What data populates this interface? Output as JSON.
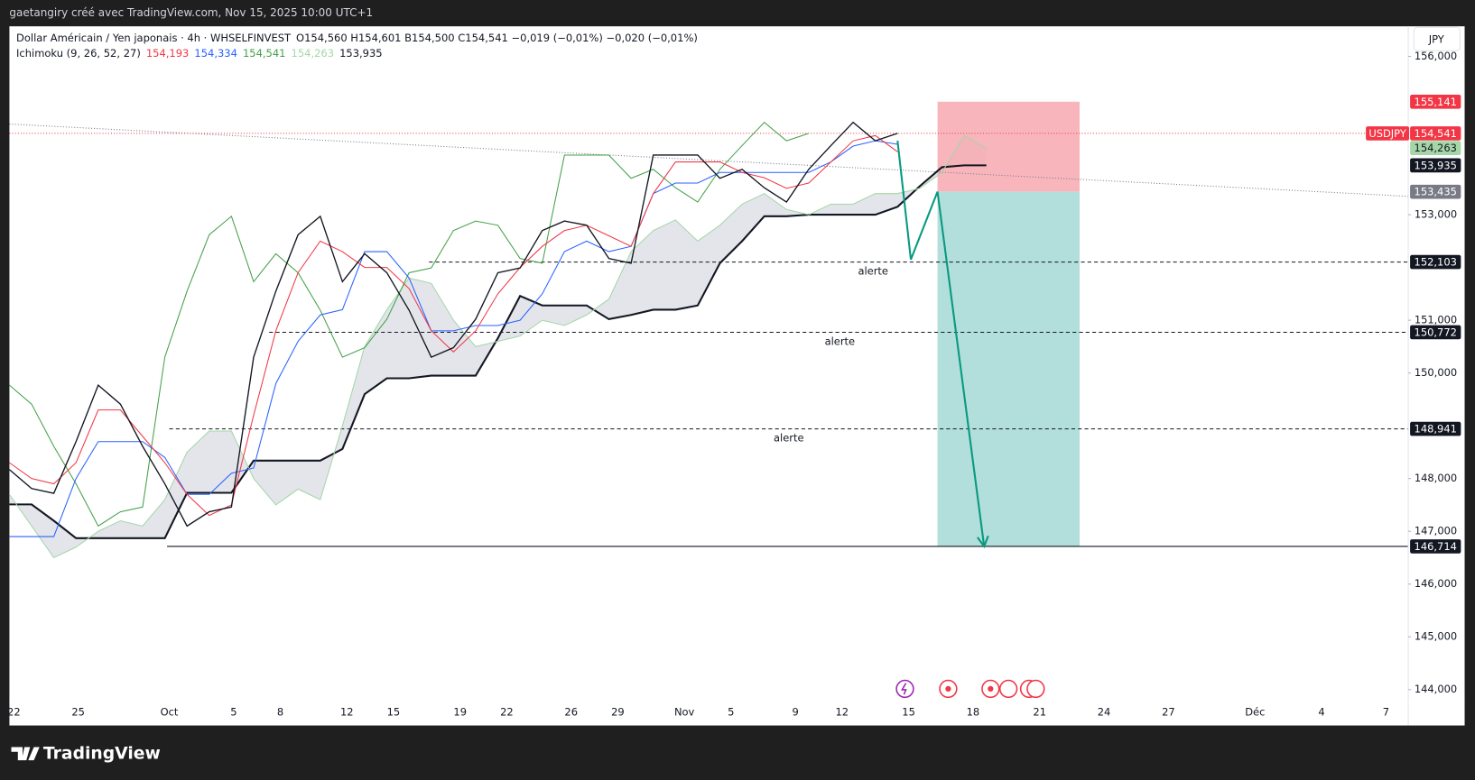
{
  "header": "gaetangiry créé avec TradingView.com, Nov 15, 2025 10:00 UTC+1",
  "brand": "TradingView",
  "chart_data": {
    "type": "line",
    "title": "Dollar Américain / Yen japonais · 4h · WHSELFINVEST",
    "ohlc": "O154,560 H154,601 B154,500 C154,541 −0,019 (−0,01%) −0,020 (−0,01%)",
    "currency": "JPY",
    "indicator": {
      "label": "Ichimoku (9, 26, 52, 27)",
      "values": [
        154193,
        154334,
        154541,
        154263,
        153935
      ],
      "value_labels": [
        "154,193",
        "154,334",
        "154,541",
        "154,263",
        "153,935"
      ]
    },
    "grid": false,
    "xlim": [
      0,
      63
    ],
    "xticks": [
      {
        "value": 0.2,
        "label": "22"
      },
      {
        "value": 3.1,
        "label": "25"
      },
      {
        "value": 7.2,
        "label": "Oct"
      },
      {
        "value": 10.1,
        "label": "5"
      },
      {
        "value": 12.2,
        "label": "8"
      },
      {
        "value": 15.2,
        "label": "12"
      },
      {
        "value": 17.3,
        "label": "15"
      },
      {
        "value": 20.3,
        "label": "19"
      },
      {
        "value": 22.4,
        "label": "22"
      },
      {
        "value": 25.3,
        "label": "26"
      },
      {
        "value": 27.4,
        "label": "29"
      },
      {
        "value": 30.4,
        "label": "Nov"
      },
      {
        "value": 32.5,
        "label": "5"
      },
      {
        "value": 35.4,
        "label": "9"
      },
      {
        "value": 37.5,
        "label": "12"
      },
      {
        "value": 40.5,
        "label": "15"
      },
      {
        "value": 43.4,
        "label": "18"
      },
      {
        "value": 46.4,
        "label": "21"
      },
      {
        "value": 49.3,
        "label": "24"
      },
      {
        "value": 52.2,
        "label": "27"
      },
      {
        "value": 56.1,
        "label": "Déc"
      },
      {
        "value": 59.1,
        "label": "4"
      },
      {
        "value": 62.0,
        "label": "7"
      }
    ],
    "ylim": [
      143320,
      156570
    ],
    "yticks": [
      {
        "value": 156000,
        "label": "156,000"
      },
      {
        "value": 153000,
        "label": "153,000"
      },
      {
        "value": 151000,
        "label": "151,000"
      },
      {
        "value": 150000,
        "label": "150,000"
      },
      {
        "value": 148000,
        "label": "148,000"
      },
      {
        "value": 147000,
        "label": "147,000"
      },
      {
        "value": 146000,
        "label": "146,000"
      },
      {
        "value": 145000,
        "label": "145,000"
      },
      {
        "value": 144000,
        "label": "144,000"
      }
    ],
    "x": [
      0,
      1,
      2,
      3,
      4,
      5,
      6,
      7,
      8,
      9,
      10,
      11,
      12,
      13,
      14,
      15,
      16,
      17,
      18,
      19,
      20,
      21,
      22,
      23,
      24,
      25,
      26,
      27,
      28,
      29,
      30,
      31,
      32,
      33,
      34,
      35,
      36,
      37,
      38,
      39,
      40,
      41,
      42,
      43,
      44
    ],
    "series": [
      {
        "name": "USDJPY",
        "color": "#131722",
        "values": [
          148170,
          147810,
          147720,
          148700,
          149770,
          149410,
          148610,
          147900,
          147100,
          147370,
          147460,
          150300,
          151550,
          152620,
          152970,
          151730,
          152260,
          151900,
          151190,
          150300,
          150480,
          151020,
          151900,
          151990,
          152700,
          152880,
          152800,
          152170,
          152080,
          154130,
          154130,
          154130,
          153690,
          153860,
          153510,
          153240,
          153860,
          154310,
          154750,
          154400,
          154541,
          null,
          null,
          null,
          null
        ]
      },
      {
        "color": "#f23645",
        "values": [
          148300,
          148000,
          147900,
          148300,
          149300,
          149300,
          148800,
          148300,
          147700,
          147300,
          147500,
          149200,
          150800,
          151900,
          152500,
          152300,
          152000,
          152000,
          151600,
          150800,
          150400,
          150800,
          151500,
          152000,
          152400,
          152700,
          152800,
          152600,
          152400,
          153400,
          154000,
          154000,
          154000,
          153800,
          153700,
          153500,
          153600,
          154000,
          154400,
          154500,
          154193,
          null,
          null,
          null,
          null
        ]
      },
      {
        "color": "#2962ff",
        "values": [
          146900,
          146900,
          146900,
          148000,
          148700,
          148700,
          148700,
          148400,
          147700,
          147700,
          148100,
          148200,
          149800,
          150600,
          151100,
          151200,
          152300,
          152300,
          151800,
          150800,
          150800,
          150900,
          150900,
          151000,
          151500,
          152300,
          152500,
          152300,
          152400,
          153400,
          153600,
          153600,
          153800,
          153800,
          153800,
          153800,
          153800,
          154000,
          154300,
          154400,
          154334,
          null,
          null,
          null,
          null
        ]
      },
      {
        "color": "#43a047",
        "values": [
          149770,
          149410,
          148610,
          147900,
          147100,
          147370,
          147460,
          150300,
          151550,
          152620,
          152970,
          151730,
          152260,
          151900,
          151190,
          150300,
          150480,
          151020,
          151900,
          151990,
          152700,
          152880,
          152800,
          152170,
          152080,
          154130,
          154130,
          154130,
          153690,
          153860,
          153510,
          153240,
          153860,
          154310,
          154750,
          154400,
          154541,
          null,
          null,
          null,
          null,
          null,
          null,
          null,
          null
        ]
      },
      {
        "color": "#a5d6a7",
        "values": [
          147700,
          147100,
          146500,
          146700,
          147000,
          147200,
          147100,
          147600,
          148500,
          148900,
          148900,
          148000,
          147500,
          147800,
          147600,
          149000,
          150500,
          151200,
          151800,
          151700,
          151000,
          150500,
          150600,
          150700,
          151000,
          150900,
          151100,
          151400,
          152300,
          152700,
          152900,
          152500,
          152800,
          153200,
          153400,
          153100,
          153000,
          153200,
          153200,
          153400,
          153400,
          153500,
          153800,
          154500,
          154263
        ]
      },
      {
        "color": "#131722",
        "values": [
          147510,
          147510,
          147200,
          146870,
          146870,
          146870,
          146870,
          146870,
          147730,
          147730,
          147730,
          148340,
          148340,
          148340,
          148340,
          148560,
          149600,
          149900,
          149900,
          149950,
          149950,
          149950,
          150660,
          151460,
          151280,
          151280,
          151280,
          151020,
          151100,
          151200,
          151200,
          151280,
          152080,
          152500,
          152970,
          152970,
          153000,
          153000,
          153000,
          153000,
          153150,
          153540,
          153900,
          153935,
          153935
        ]
      }
    ],
    "cloud_color": "#d1d4dc",
    "trendline": {
      "x": [
        0,
        63
      ],
      "values": [
        154718,
        153348
      ],
      "color": "#787b86"
    },
    "levels": [
      {
        "value": 152103,
        "x_start": 18.9,
        "style": "dashed",
        "note": "alerte",
        "note_x": 38.9
      },
      {
        "value": 150772,
        "x_start": 11.7,
        "style": "dashed",
        "note": "alerte",
        "note_x": 37.4
      },
      {
        "value": 148941,
        "x_start": 7.2,
        "style": "dashed",
        "note": "alerte",
        "note_x": 35.1
      },
      {
        "value": 146714,
        "x_start": 7.1,
        "style": "solid"
      }
    ],
    "position": {
      "x": [
        41.8,
        48.2
      ],
      "stop": 155141,
      "entry": 153435,
      "target": 146714,
      "stop_color": "#f7a9b0",
      "target_color": "#b2dfdb"
    },
    "projection": {
      "x": [
        40.0,
        40.6,
        41.8,
        43.9
      ],
      "values": [
        154400,
        152150,
        153435,
        146714
      ],
      "color": "#089981"
    },
    "price_tags": [
      {
        "value": 155141,
        "label": "155,141",
        "color": "#f23645",
        "text_color": "#ffffff"
      },
      {
        "value": 154541,
        "label": "154,541",
        "name": "USDJPY",
        "color": "#f23645",
        "text_color": "#ffffff"
      },
      {
        "value": 154263,
        "label": "154,263",
        "color": "#a5d6a7",
        "text_color": "#131722"
      },
      {
        "value": 153935,
        "label": "153,935",
        "color": "#131722",
        "text_color": "#ffffff"
      },
      {
        "value": 153435,
        "label": "153,435",
        "color": "#787b86",
        "text_color": "#ffffff"
      },
      {
        "value": 152103,
        "label": "152,103",
        "color": "#131722",
        "text_color": "#ffffff"
      },
      {
        "value": 150772,
        "label": "150,772",
        "color": "#131722",
        "text_color": "#ffffff"
      },
      {
        "value": 148941,
        "label": "148,941",
        "color": "#131722",
        "text_color": "#ffffff"
      },
      {
        "value": 146714,
        "label": "146,714",
        "color": "#131722",
        "text_color": "#ffffff"
      }
    ]
  }
}
